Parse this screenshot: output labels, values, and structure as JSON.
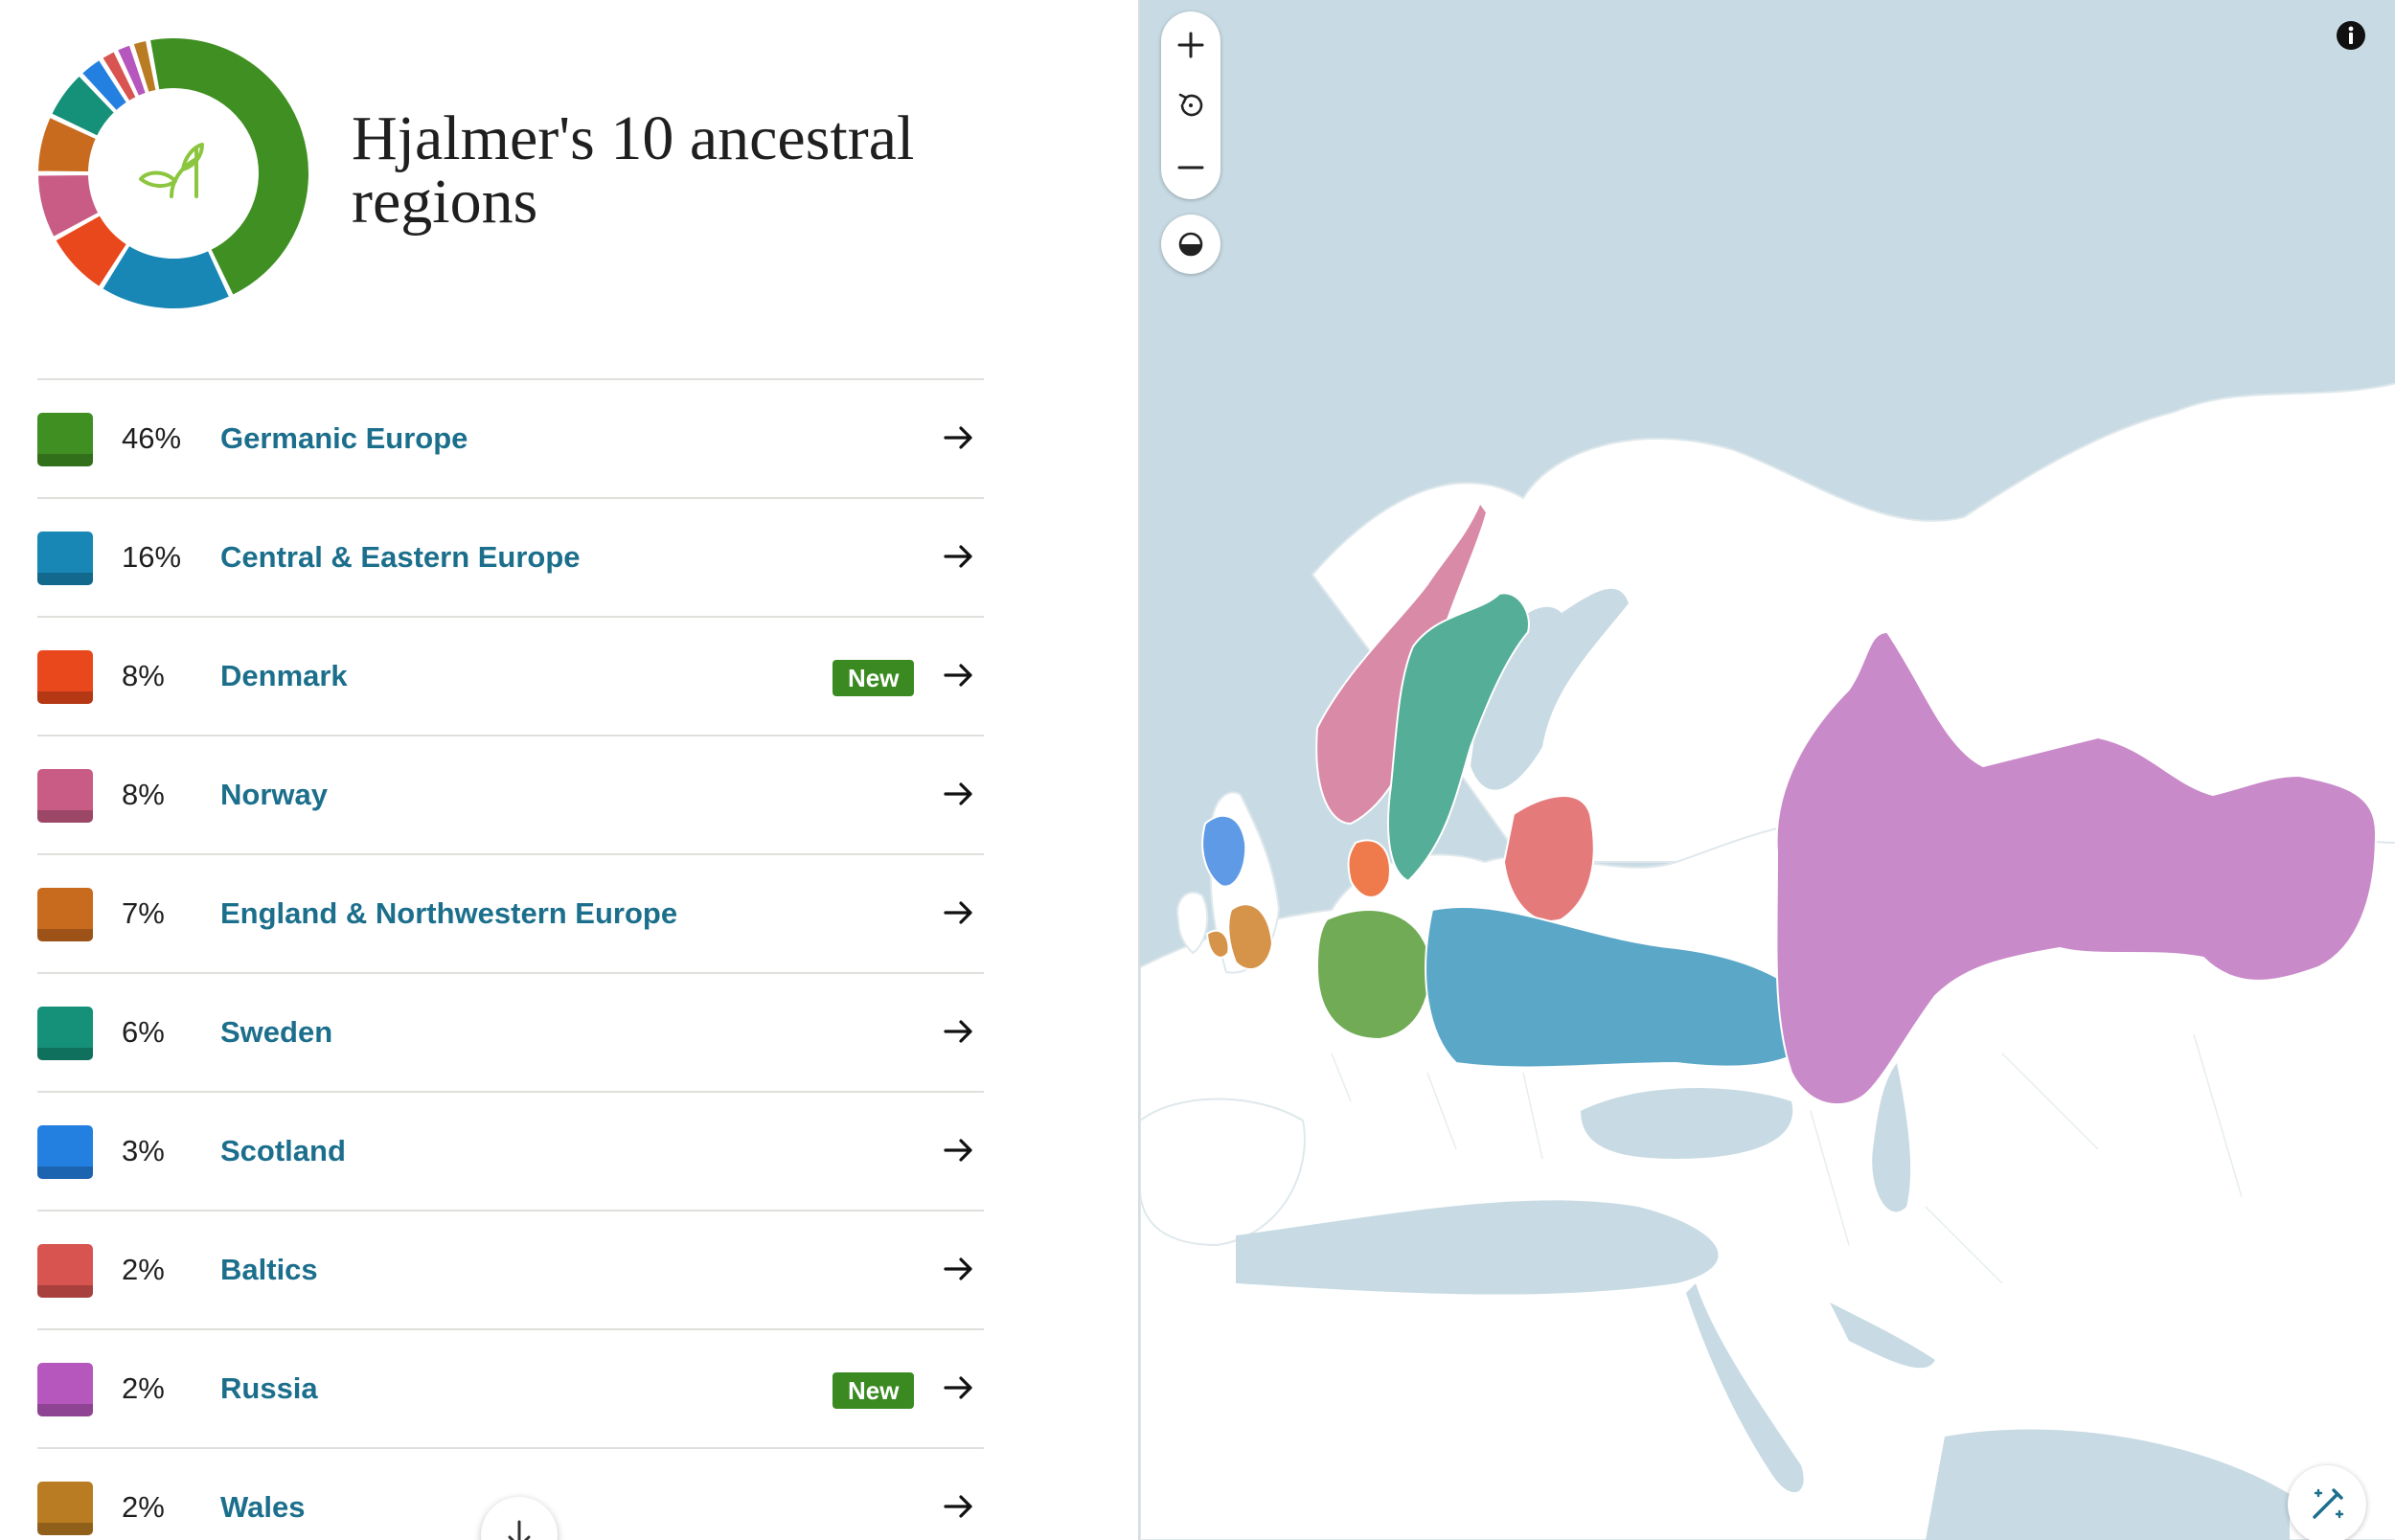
{
  "title": "Hjalmer's 10 ancestral regions",
  "regions": [
    {
      "percent": "46%",
      "label": "Germanic Europe",
      "value": 46,
      "color": "#3f8f22",
      "badge": ""
    },
    {
      "percent": "16%",
      "label": "Central & Eastern Europe",
      "value": 16,
      "color": "#1887b5",
      "badge": ""
    },
    {
      "percent": "8%",
      "label": "Denmark",
      "value": 8,
      "color": "#e8481c",
      "badge": "New"
    },
    {
      "percent": "8%",
      "label": "Norway",
      "value": 8,
      "color": "#c95c85",
      "badge": ""
    },
    {
      "percent": "7%",
      "label": "England & Northwestern Europe",
      "value": 7,
      "color": "#c96b1e",
      "badge": ""
    },
    {
      "percent": "6%",
      "label": "Sweden",
      "value": 6,
      "color": "#159079",
      "badge": ""
    },
    {
      "percent": "3%",
      "label": "Scotland",
      "value": 3,
      "color": "#2480e0",
      "badge": ""
    },
    {
      "percent": "2%",
      "label": "Baltics",
      "value": 2,
      "color": "#d85450",
      "badge": ""
    },
    {
      "percent": "2%",
      "label": "Russia",
      "value": 2,
      "color": "#b657bd",
      "badge": "New"
    },
    {
      "percent": "2%",
      "label": "Wales",
      "value": 2,
      "color": "#b97c22",
      "badge": ""
    }
  ],
  "icons": {
    "donut_center": "sprout-icon",
    "row_arrow": "arrow-right-icon",
    "scroll_down": "arrow-down-icon",
    "zoom_in": "plus-icon",
    "reset": "rotate-ccw-icon",
    "zoom_out": "minus-icon",
    "contrast": "half-circle-icon",
    "info": "info-icon",
    "magic": "magic-wand-icon"
  },
  "colors": {
    "ocean": "#c8dbe4",
    "land": "#ffffff",
    "link": "#1c6f8c",
    "badge": "#3a8a21",
    "sprout": "#8cc63f"
  }
}
